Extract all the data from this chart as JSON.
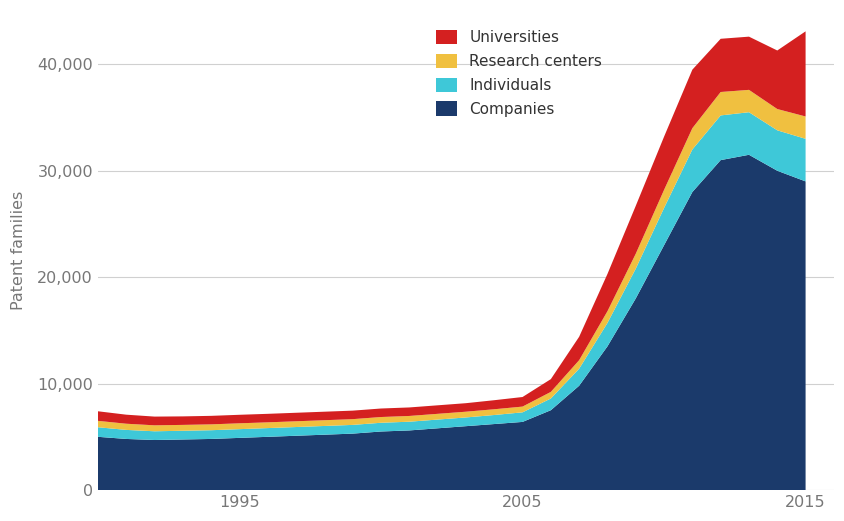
{
  "years": [
    1990,
    1991,
    1992,
    1993,
    1994,
    1995,
    1996,
    1997,
    1998,
    1999,
    2000,
    2001,
    2002,
    2003,
    2004,
    2005,
    2006,
    2007,
    2008,
    2009,
    2010,
    2011,
    2012,
    2013,
    2014,
    2015
  ],
  "companies": [
    5000,
    4800,
    4700,
    4750,
    4800,
    4900,
    5000,
    5100,
    5200,
    5300,
    5500,
    5600,
    5800,
    6000,
    6200,
    6400,
    7500,
    9800,
    13500,
    18000,
    23000,
    28000,
    31000,
    31500,
    30000,
    29000
  ],
  "individuals": [
    900,
    850,
    820,
    820,
    820,
    820,
    820,
    820,
    820,
    820,
    820,
    820,
    820,
    820,
    850,
    900,
    1100,
    1600,
    2200,
    2800,
    3500,
    4000,
    4200,
    4000,
    3800,
    4000
  ],
  "research_centers": [
    600,
    580,
    560,
    550,
    550,
    550,
    540,
    540,
    540,
    540,
    540,
    540,
    540,
    540,
    540,
    540,
    620,
    800,
    1100,
    1400,
    1700,
    2000,
    2200,
    2100,
    2000,
    2100
  ],
  "universities": [
    900,
    850,
    820,
    800,
    800,
    800,
    800,
    800,
    800,
    800,
    800,
    800,
    800,
    800,
    850,
    900,
    1200,
    2200,
    3500,
    4500,
    5000,
    5500,
    5000,
    5000,
    5500,
    8000
  ],
  "colors": {
    "companies": "#1b3a6b",
    "individuals": "#3ec8d8",
    "research_centers": "#f0c040",
    "universities": "#d42020"
  },
  "ylabel": "Patent families",
  "ylim": [
    0,
    45000
  ],
  "yticks": [
    0,
    10000,
    20000,
    30000,
    40000
  ],
  "xlim_start": 1990,
  "xlim_end": 2016,
  "xticks": [
    1995,
    2005,
    2015
  ],
  "legend_labels": [
    "Universities",
    "Research centers",
    "Individuals",
    "Companies"
  ],
  "background_color": "#ffffff",
  "grid_color": "#d0d0d0"
}
